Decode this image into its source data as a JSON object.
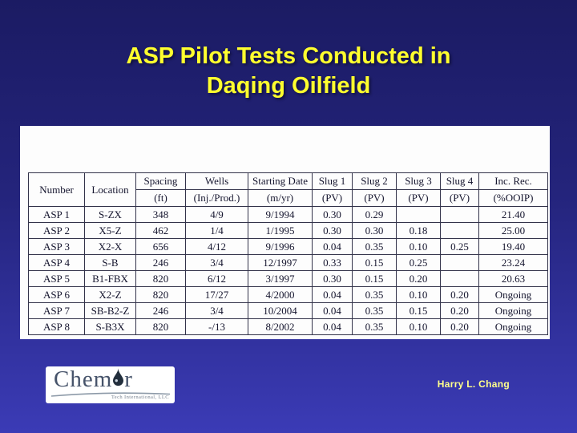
{
  "slide": {
    "title_line1": "ASP Pilot Tests Conducted in",
    "title_line2": "Daqing Oilfield",
    "author": "Harry L. Chang",
    "colors": {
      "background_top": "#1b1b63",
      "background_bottom": "#3b3bb6",
      "title_yellow": "#ffff2e",
      "author_yellow": "#ffff8c",
      "table_text": "#15152e"
    }
  },
  "logo": {
    "brand_prefix": "Chem",
    "brand_suffix": "r",
    "drop_icon": "water-droplet",
    "tagline": "Tech International, LLC"
  },
  "table": {
    "header_row1": [
      "Number",
      "Location",
      "Spacing",
      "Wells",
      "Starting Date",
      "Slug 1",
      "Slug 2",
      "Slug 3",
      "Slug 4",
      "Inc. Rec."
    ],
    "header_row2": [
      "(ft)",
      "(Inj./Prod.)",
      "(m/yr)",
      "(PV)",
      "(PV)",
      "(PV)",
      "(PV)",
      "(%OOIP)"
    ],
    "rows": [
      [
        "ASP 1",
        "S-ZX",
        "348",
        "4/9",
        "9/1994",
        "0.30",
        "0.29",
        "",
        "",
        "21.40"
      ],
      [
        "ASP 2",
        "X5-Z",
        "462",
        "1/4",
        "1/1995",
        "0.30",
        "0.30",
        "0.18",
        "",
        "25.00"
      ],
      [
        "ASP 3",
        "X2-X",
        "656",
        "4/12",
        "9/1996",
        "0.04",
        "0.35",
        "0.10",
        "0.25",
        "19.40"
      ],
      [
        "ASP 4",
        "S-B",
        "246",
        "3/4",
        "12/1997",
        "0.33",
        "0.15",
        "0.25",
        "",
        "23.24"
      ],
      [
        "ASP 5",
        "B1-FBX",
        "820",
        "6/12",
        "3/1997",
        "0.30",
        "0.15",
        "0.20",
        "",
        "20.63"
      ],
      [
        "ASP 6",
        "X2-Z",
        "820",
        "17/27",
        "4/2000",
        "0.04",
        "0.35",
        "0.10",
        "0.20",
        "Ongoing"
      ],
      [
        "ASP 7",
        "SB-B2-Z",
        "246",
        "3/4",
        "10/2004",
        "0.04",
        "0.35",
        "0.15",
        "0.20",
        "Ongoing"
      ],
      [
        "ASP 8",
        "S-B3X",
        "820",
        "-/13",
        "8/2002",
        "0.04",
        "0.35",
        "0.10",
        "0.20",
        "Ongoing"
      ]
    ]
  }
}
